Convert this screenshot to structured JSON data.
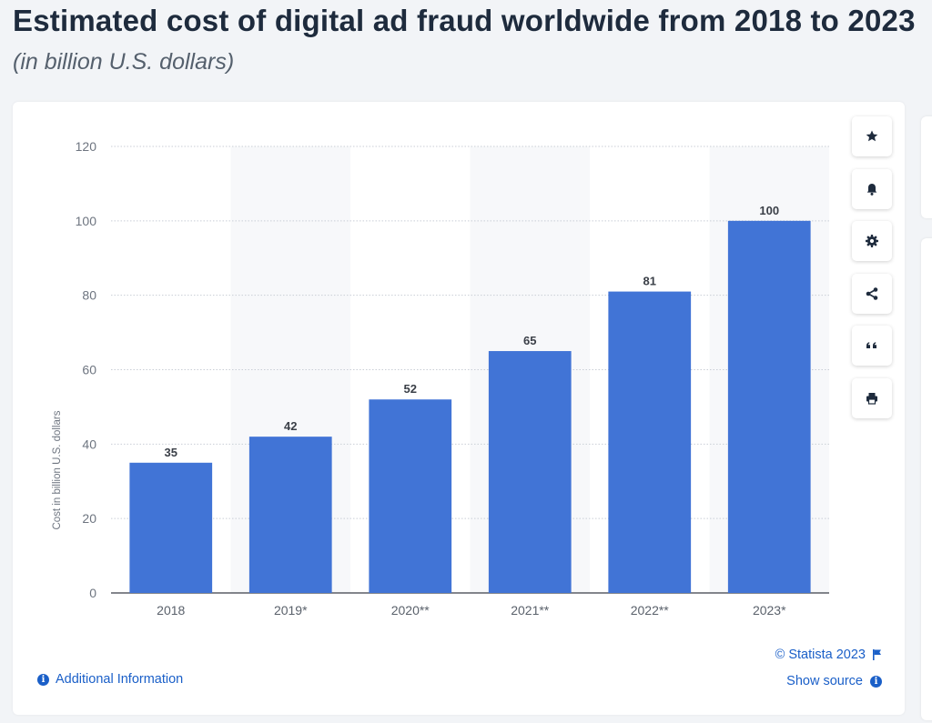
{
  "header": {
    "title": "Estimated cost of digital ad fraud worldwide from 2018 to 2023",
    "subtitle": "(in billion U.S. dollars)"
  },
  "chart_data": {
    "type": "bar",
    "categories": [
      "2018",
      "2019*",
      "2020**",
      "2021**",
      "2022**",
      "2023*"
    ],
    "values": [
      35,
      42,
      52,
      65,
      81,
      100
    ],
    "data_labels": [
      "35",
      "42",
      "52",
      "65",
      "81",
      "100"
    ],
    "ylabel": "Cost in billion U.S. dollars",
    "xlabel": "",
    "ylim": [
      0,
      120
    ],
    "yticks": [
      0,
      20,
      40,
      60,
      80,
      100,
      120
    ],
    "grid": true,
    "bar_color": "#4174d6",
    "band_color": "#f7f8fa"
  },
  "toolbar": {
    "icons": [
      "star-icon",
      "bell-icon",
      "gear-icon",
      "share-icon",
      "quote-icon",
      "print-icon"
    ]
  },
  "footer": {
    "additional_info": "Additional Information",
    "copyright": "© Statista 2023",
    "show_source": "Show source"
  },
  "colors": {
    "link": "#1a5fc8",
    "title": "#1e2b3d"
  }
}
